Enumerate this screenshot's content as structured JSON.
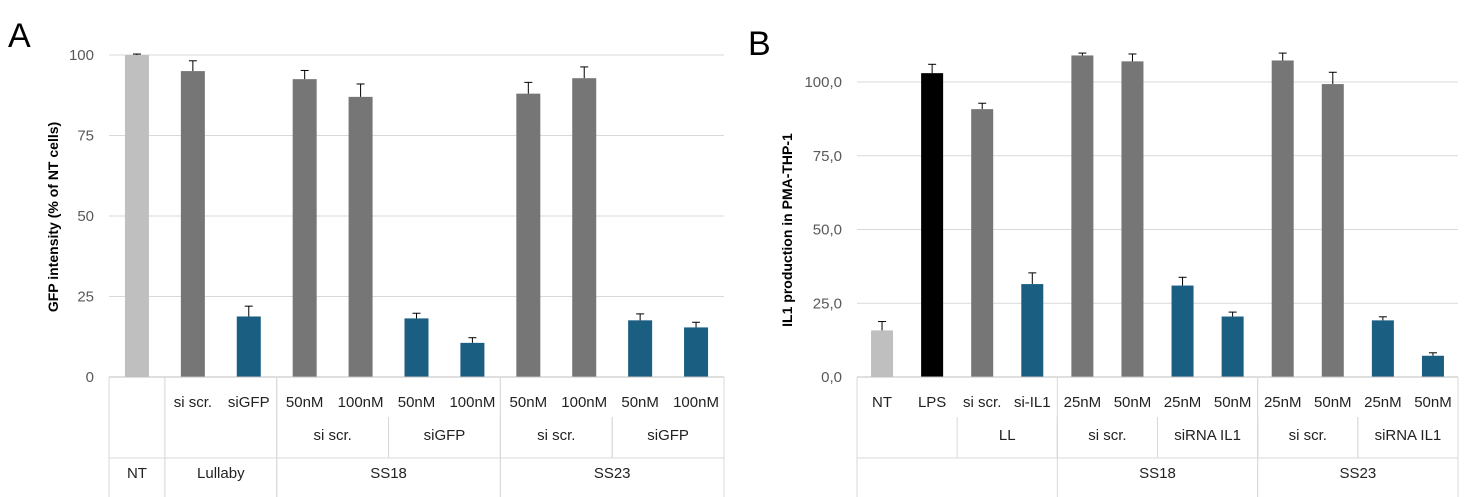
{
  "chart_data": [
    {
      "type": "bar",
      "panel": "A",
      "ylabel": "GFP intensity (% of NT cells)",
      "ylim": [
        0,
        100
      ],
      "yticks": [
        "0",
        "25",
        "50",
        "75",
        "100"
      ],
      "ytick_values": [
        0,
        25,
        50,
        75,
        100
      ],
      "grid": true,
      "bars": [
        {
          "label": "",
          "value": 100,
          "error": 0.3,
          "color": "#BFBFBF"
        },
        {
          "label": "si scr.",
          "value": 95,
          "error": 3.2,
          "color": "#767676"
        },
        {
          "label": "siGFP",
          "value": 18.8,
          "error": 3.2,
          "color": "#1A5E82"
        },
        {
          "label": "50nM",
          "value": 92.5,
          "error": 2.7,
          "color": "#767676"
        },
        {
          "label": "100nM",
          "value": 87,
          "error": 4.0,
          "color": "#767676"
        },
        {
          "label": "50nM",
          "value": 18.2,
          "error": 1.6,
          "color": "#1A5E82"
        },
        {
          "label": "100nM",
          "value": 10.6,
          "error": 1.6,
          "color": "#1A5E82"
        },
        {
          "label": "50nM",
          "value": 88,
          "error": 3.5,
          "color": "#767676"
        },
        {
          "label": "100nM",
          "value": 92.8,
          "error": 3.5,
          "color": "#767676"
        },
        {
          "label": "50nM",
          "value": 17.6,
          "error": 2.0,
          "color": "#1A5E82"
        },
        {
          "label": "100nM",
          "value": 15.4,
          "error": 1.6,
          "color": "#1A5E82"
        }
      ],
      "group_level1": [
        {
          "label": "si scr.",
          "from": 3,
          "to": 4
        },
        {
          "label": "siGFP",
          "from": 5,
          "to": 6
        },
        {
          "label": "si scr.",
          "from": 7,
          "to": 8
        },
        {
          "label": "siGFP",
          "from": 9,
          "to": 10
        }
      ],
      "group_level2": [
        {
          "label": "NT",
          "from": 0,
          "to": 0
        },
        {
          "label": "Lullaby",
          "from": 1,
          "to": 2
        },
        {
          "label": "SS18",
          "from": 3,
          "to": 6
        },
        {
          "label": "SS23",
          "from": 7,
          "to": 10
        }
      ]
    },
    {
      "type": "bar",
      "panel": "B",
      "ylabel": "IL1 production in PMA-THP-1",
      "ylim": [
        0,
        110
      ],
      "yticks": [
        "0,0",
        "25,0",
        "50,0",
        "75,0",
        "100,0"
      ],
      "ytick_values": [
        0,
        25,
        50,
        75,
        100
      ],
      "grid": true,
      "bars": [
        {
          "label": "NT",
          "value": 15.8,
          "error": 3.0,
          "color": "#BFBFBF"
        },
        {
          "label": "LPS",
          "value": 103,
          "error": 3.0,
          "color": "#000000"
        },
        {
          "label": "si scr.",
          "value": 90.8,
          "error": 2.0,
          "color": "#767676"
        },
        {
          "label": "si-IL1",
          "value": 31.5,
          "error": 3.8,
          "color": "#1A5E82"
        },
        {
          "label": "25nM",
          "value": 109,
          "error": 0.8,
          "color": "#767676"
        },
        {
          "label": "50nM",
          "value": 107,
          "error": 2.5,
          "color": "#767676"
        },
        {
          "label": "25nM",
          "value": 31,
          "error": 2.8,
          "color": "#1A5E82"
        },
        {
          "label": "50nM",
          "value": 20.5,
          "error": 1.5,
          "color": "#1A5E82"
        },
        {
          "label": "25nM",
          "value": 107.3,
          "error": 2.5,
          "color": "#767676"
        },
        {
          "label": "50nM",
          "value": 99.3,
          "error": 4.0,
          "color": "#767676"
        },
        {
          "label": "25nM",
          "value": 19.2,
          "error": 1.2,
          "color": "#1A5E82"
        },
        {
          "label": "50nM",
          "value": 7.2,
          "error": 1.0,
          "color": "#1A5E82"
        }
      ],
      "group_level1": [
        {
          "label": "LL",
          "from": 2,
          "to": 3
        },
        {
          "label": "si scr.",
          "from": 4,
          "to": 5
        },
        {
          "label": "siRNA IL1",
          "from": 6,
          "to": 7
        },
        {
          "label": "si scr.",
          "from": 8,
          "to": 9
        },
        {
          "label": "siRNA IL1",
          "from": 10,
          "to": 11
        }
      ],
      "group_level2": [
        {
          "label": "SS18",
          "from": 4,
          "to": 7
        },
        {
          "label": "SS23",
          "from": 8,
          "to": 11
        }
      ]
    }
  ]
}
